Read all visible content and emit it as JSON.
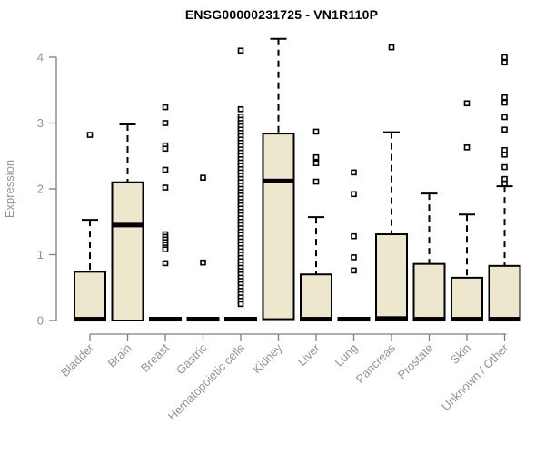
{
  "chart_data": {
    "type": "boxplot",
    "title": "ENSG00000231725 - VN1R110P",
    "ylabel": "Expression",
    "ylim": [
      0,
      4
    ],
    "yticks": [
      0,
      1,
      2,
      3,
      4
    ],
    "grid": false,
    "legend": "none",
    "box_fill": "#EDE8CD",
    "box_stroke": "#000000",
    "median_color": "#000000",
    "axis_color": "#7E7E7E",
    "label_color": "#949494",
    "categories": [
      "Bladder",
      "Brain",
      "Breast",
      "Gastric",
      "Hematopoietic cells",
      "Kidney",
      "Liver",
      "Lung",
      "Pancreas",
      "Prostate",
      "Skin",
      "Unknown / Other"
    ],
    "boxes": [
      {
        "category": "Bladder",
        "whisker_low": 0,
        "q1": 0,
        "median": 0.02,
        "q3": 0.74,
        "whisker_high": 1.53,
        "outliers": [
          2.82
        ]
      },
      {
        "category": "Brain",
        "whisker_low": 0,
        "q1": 0,
        "median": 1.45,
        "q3": 2.1,
        "whisker_high": 2.98,
        "outliers": []
      },
      {
        "category": "Breast",
        "whisker_low": 0,
        "q1": 0,
        "median": 0.02,
        "q3": 0.04,
        "whisker_high": 0.04,
        "outliers": [
          3.24,
          3.0,
          2.66,
          2.61,
          2.29,
          2.02,
          1.31,
          1.27,
          1.23,
          1.19,
          1.15,
          1.11,
          1.08,
          0.87
        ]
      },
      {
        "category": "Gastric",
        "whisker_low": 0,
        "q1": 0,
        "median": 0.02,
        "q3": 0.04,
        "whisker_high": 0.04,
        "outliers": [
          2.17,
          0.88
        ]
      },
      {
        "category": "Hematopoietic cells",
        "whisker_low": 0,
        "q1": 0,
        "median": 0.02,
        "q3": 0.04,
        "whisker_high": 0.04,
        "outliers": [
          4.1,
          3.21,
          3.1,
          3.05,
          3.0,
          2.95,
          2.9,
          2.85,
          2.8,
          2.75,
          2.7,
          2.65,
          2.6,
          2.55,
          2.5,
          2.45,
          2.4,
          2.35,
          2.3,
          2.25,
          2.2,
          2.15,
          2.1,
          2.05,
          2.0,
          1.95,
          1.9,
          1.85,
          1.8,
          1.75,
          1.7,
          1.65,
          1.6,
          1.55,
          1.5,
          1.45,
          1.4,
          1.35,
          1.3,
          1.25,
          1.2,
          1.15,
          1.1,
          1.05,
          1.0,
          0.95,
          0.9,
          0.85,
          0.8,
          0.75,
          0.7,
          0.65,
          0.6,
          0.55,
          0.5,
          0.45,
          0.4,
          0.35,
          0.3,
          0.25
        ]
      },
      {
        "category": "Kidney",
        "whisker_low": 0,
        "q1": 0.02,
        "median": 2.12,
        "q3": 2.84,
        "whisker_high": 4.28,
        "outliers": []
      },
      {
        "category": "Liver",
        "whisker_low": 0,
        "q1": 0,
        "median": 0.02,
        "q3": 0.7,
        "whisker_high": 1.57,
        "outliers": [
          2.87,
          2.48,
          2.39,
          2.11
        ]
      },
      {
        "category": "Lung",
        "whisker_low": 0,
        "q1": 0,
        "median": 0.02,
        "q3": 0.04,
        "whisker_high": 0.04,
        "outliers": [
          2.25,
          1.92,
          1.28,
          0.96,
          0.76
        ]
      },
      {
        "category": "Pancreas",
        "whisker_low": 0,
        "q1": 0,
        "median": 0.03,
        "q3": 1.31,
        "whisker_high": 2.86,
        "outliers": [
          4.15
        ]
      },
      {
        "category": "Prostate",
        "whisker_low": 0,
        "q1": 0,
        "median": 0.02,
        "q3": 0.86,
        "whisker_high": 1.93,
        "outliers": []
      },
      {
        "category": "Skin",
        "whisker_low": 0,
        "q1": 0,
        "median": 0.02,
        "q3": 0.65,
        "whisker_high": 1.61,
        "outliers": [
          3.3,
          2.63
        ]
      },
      {
        "category": "Unknown / Other",
        "whisker_low": 0,
        "q1": 0,
        "median": 0.02,
        "q3": 0.83,
        "whisker_high": 2.04,
        "outliers": [
          4.0,
          3.92,
          3.39,
          3.31,
          3.09,
          2.9,
          2.59,
          2.52,
          2.33,
          2.15,
          2.08
        ]
      }
    ]
  }
}
